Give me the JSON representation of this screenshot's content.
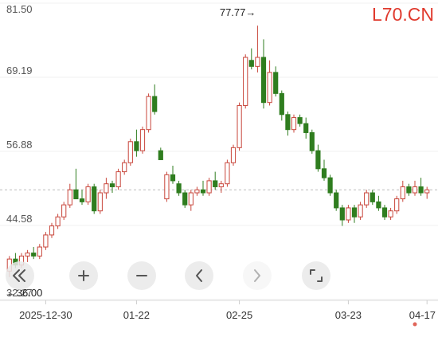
{
  "chart_data": {
    "type": "candlestick",
    "watermark": "L70.CN",
    "categories": [
      null,
      null,
      null,
      null,
      null,
      null,
      "2025-12-30",
      null,
      null,
      null,
      null,
      null,
      null,
      null,
      null,
      null,
      null,
      null,
      null,
      null,
      null,
      "01-22",
      null,
      null,
      null,
      null,
      null,
      null,
      null,
      null,
      null,
      null,
      null,
      null,
      null,
      null,
      null,
      null,
      "02-25",
      null,
      null,
      null,
      null,
      null,
      null,
      null,
      null,
      null,
      null,
      null,
      null,
      null,
      null,
      null,
      null,
      null,
      "03-23",
      null,
      null,
      null,
      null,
      null,
      null,
      null,
      null,
      null,
      null,
      null,
      null,
      "04-17"
    ],
    "open": [
      37.0,
      39.0,
      38.0,
      39.5,
      40.0,
      39.5,
      41.0,
      43.0,
      44.5,
      46.0,
      48.0,
      50.5,
      49.0,
      48.5,
      51.0,
      47.0,
      50.0,
      51.5,
      51.0,
      53.5,
      55.0,
      58.5,
      57.0,
      60.5,
      66.0,
      57.0,
      49.0,
      53.0,
      51.5,
      50.0,
      48.0,
      50.0,
      50.5,
      50.0,
      52.0,
      51.0,
      51.5,
      55.0,
      57.5,
      64.5,
      72.0,
      71.0,
      72.5,
      65.0,
      70.0,
      66.5,
      63.0,
      60.5,
      62.5,
      61.5,
      60.0,
      57.0,
      54.0,
      52.5,
      50.0,
      47.5,
      45.5,
      47.5,
      46.0,
      48.0,
      50.0,
      48.5,
      47.5,
      46.0,
      47.0,
      49.0,
      51.0,
      50.0,
      51.0,
      50.0
    ],
    "high": [
      39.5,
      40.0,
      40.0,
      40.5,
      41.0,
      41.5,
      43.5,
      45.0,
      46.5,
      48.5,
      51.5,
      54.0,
      50.5,
      51.5,
      51.5,
      50.5,
      52.5,
      52.0,
      54.0,
      55.5,
      59.0,
      60.5,
      61.0,
      66.5,
      68.0,
      57.5,
      53.5,
      54.5,
      52.0,
      50.5,
      50.5,
      51.0,
      52.0,
      52.5,
      53.5,
      52.0,
      55.5,
      58.0,
      65.0,
      73.0,
      74.0,
      77.77,
      75.5,
      72.0,
      71.0,
      67.0,
      63.5,
      63.0,
      63.0,
      62.5,
      60.5,
      58.0,
      55.5,
      53.0,
      50.5,
      48.0,
      48.0,
      48.0,
      48.5,
      50.5,
      50.5,
      49.5,
      48.0,
      47.5,
      49.5,
      52.0,
      51.5,
      52.0,
      52.5,
      51.0
    ],
    "low": [
      36.0,
      37.5,
      37.5,
      38.5,
      39.0,
      39.0,
      40.5,
      42.5,
      44.0,
      45.5,
      47.5,
      49.0,
      48.0,
      48.0,
      46.5,
      46.5,
      49.0,
      50.0,
      50.5,
      53.0,
      54.5,
      56.0,
      56.5,
      60.0,
      63.0,
      55.5,
      48.5,
      51.5,
      49.5,
      47.5,
      47.0,
      49.5,
      49.5,
      49.5,
      50.5,
      50.0,
      51.0,
      54.5,
      57.0,
      64.0,
      70.5,
      70.0,
      64.0,
      64.5,
      66.0,
      62.0,
      59.5,
      60.0,
      61.0,
      59.0,
      56.5,
      53.5,
      52.0,
      49.5,
      47.0,
      44.5,
      45.0,
      45.0,
      45.5,
      47.5,
      48.0,
      47.0,
      45.5,
      45.5,
      46.5,
      48.5,
      49.5,
      49.5,
      49.5,
      49.0
    ],
    "close": [
      39.0,
      38.0,
      39.5,
      40.0,
      39.5,
      41.0,
      43.0,
      44.5,
      46.0,
      48.0,
      50.5,
      49.0,
      48.5,
      51.0,
      47.0,
      50.0,
      51.5,
      51.0,
      53.5,
      55.0,
      58.5,
      57.0,
      60.5,
      66.0,
      63.5,
      55.5,
      53.0,
      52.0,
      50.0,
      48.0,
      50.0,
      50.5,
      50.0,
      52.0,
      51.0,
      51.5,
      55.0,
      57.5,
      64.5,
      72.5,
      71.0,
      72.5,
      65.0,
      70.0,
      66.5,
      63.0,
      60.5,
      62.5,
      61.5,
      60.0,
      57.0,
      54.0,
      52.5,
      50.0,
      47.5,
      45.5,
      47.5,
      46.0,
      48.0,
      50.0,
      48.5,
      47.5,
      46.0,
      47.0,
      49.0,
      51.0,
      50.0,
      51.0,
      50.0,
      50.5
    ],
    "up_color": "#c8453a",
    "down_color": "#2f7d1f",
    "reference_line": 50.5,
    "high_label": "77.77→",
    "low_label": "←36.00",
    "ylim": [
      32.27,
      81.5
    ],
    "yticks": [
      {
        "value": 81.5,
        "label": "81.50"
      },
      69.19,
      56.88,
      44.58,
      32.27
    ],
    "grid": true
  }
}
